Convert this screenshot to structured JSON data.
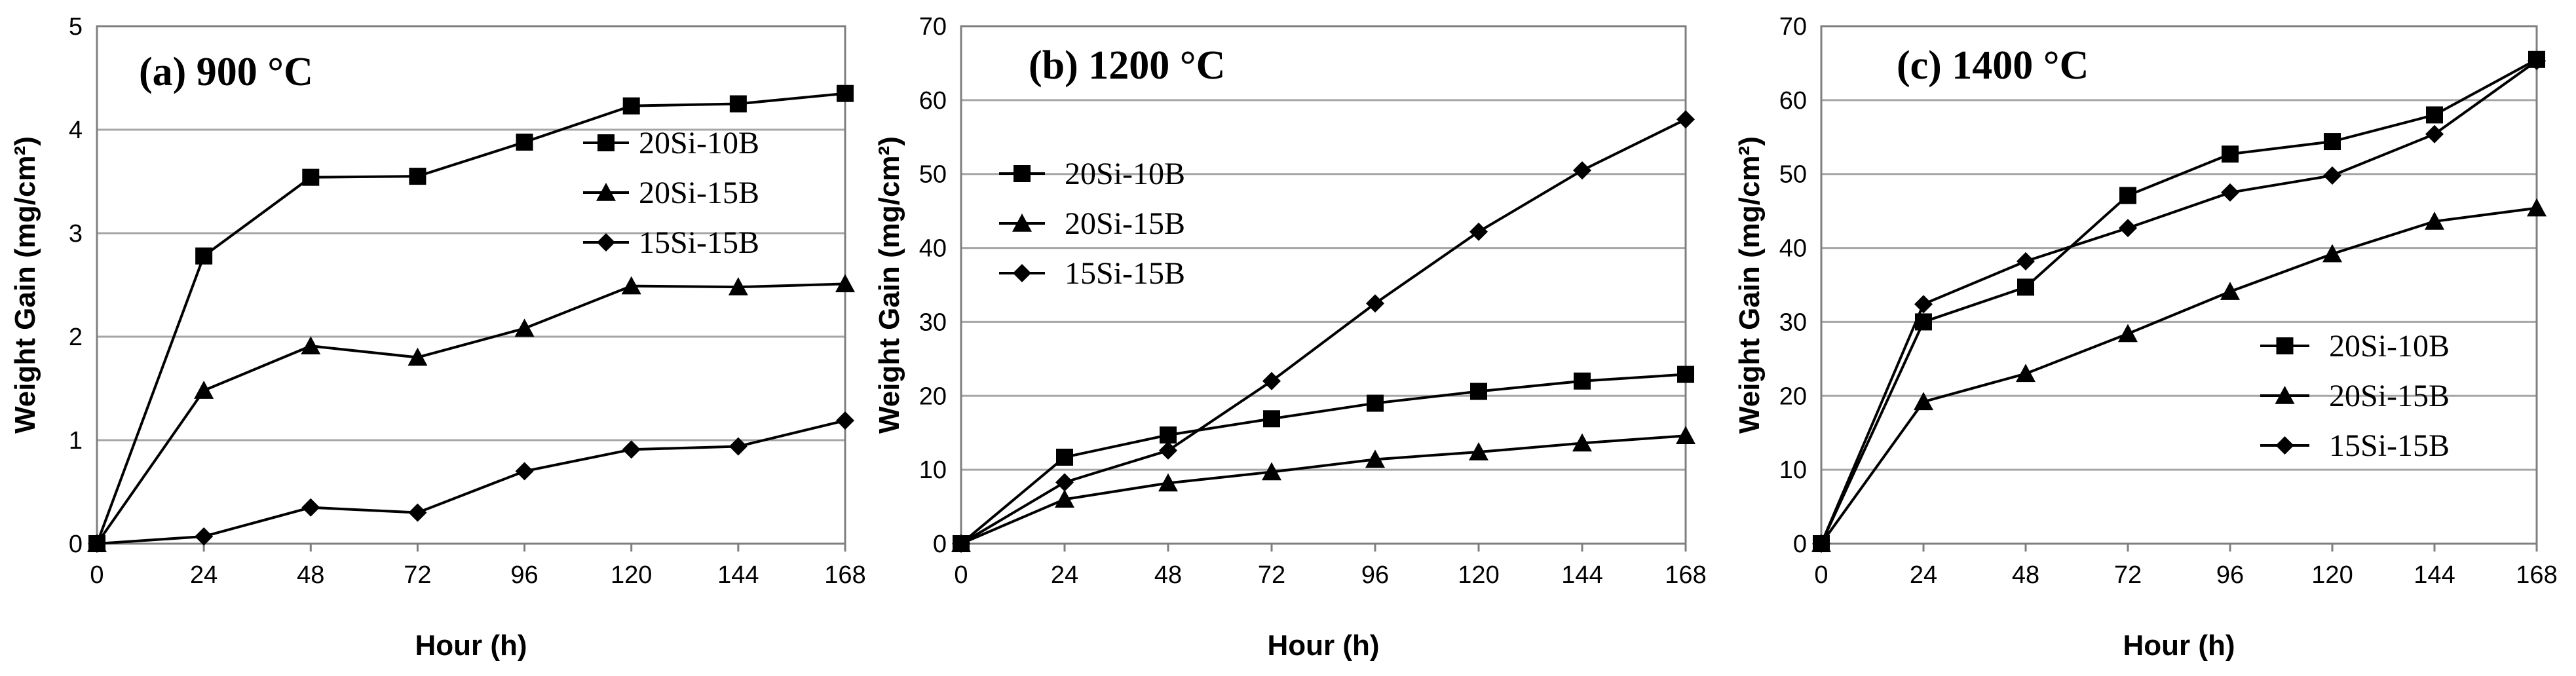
{
  "chart_data": [
    {
      "type": "line",
      "title": "(a) 900 °C",
      "xlabel": "Hour (h)",
      "ylabel": "Weight Gain (mg/cm²)",
      "x": [
        0,
        24,
        48,
        72,
        96,
        120,
        144,
        168
      ],
      "xticks": [
        "0",
        "24",
        "48",
        "72",
        "96",
        "120",
        "144",
        "168"
      ],
      "ylim": [
        0,
        5
      ],
      "yticks": [
        "0",
        "1",
        "2",
        "3",
        "4",
        "5"
      ],
      "grid": true,
      "legend_position": "right",
      "series": [
        {
          "name": "20Si-10B",
          "marker": "square",
          "values": [
            0,
            2.78,
            3.54,
            3.55,
            3.88,
            4.23,
            4.25,
            4.35
          ]
        },
        {
          "name": "20Si-15B",
          "marker": "triangle",
          "values": [
            0,
            1.48,
            1.91,
            1.8,
            2.08,
            2.49,
            2.48,
            2.51
          ]
        },
        {
          "name": "15Si-15B",
          "marker": "diamond",
          "values": [
            0,
            0.07,
            0.35,
            0.3,
            0.7,
            0.91,
            0.94,
            1.19
          ]
        }
      ]
    },
    {
      "type": "line",
      "title": "(b) 1200 °C",
      "xlabel": "Hour (h)",
      "ylabel": "Weight Gain (mg/cm²)",
      "x": [
        0,
        24,
        48,
        72,
        96,
        120,
        144,
        168
      ],
      "xticks": [
        "0",
        "24",
        "48",
        "72",
        "96",
        "120",
        "144",
        "168"
      ],
      "ylim": [
        0,
        70
      ],
      "yticks": [
        "0",
        "10",
        "20",
        "30",
        "40",
        "50",
        "60",
        "70"
      ],
      "grid": true,
      "legend_position": "left",
      "series": [
        {
          "name": "20Si-10B",
          "marker": "square",
          "values": [
            0,
            11.7,
            14.7,
            16.9,
            19.0,
            20.6,
            22.0,
            22.9
          ]
        },
        {
          "name": "20Si-15B",
          "marker": "triangle",
          "values": [
            0,
            6.0,
            8.2,
            9.7,
            11.4,
            12.4,
            13.6,
            14.6
          ]
        },
        {
          "name": "15Si-15B",
          "marker": "diamond",
          "values": [
            0,
            8.3,
            12.6,
            22.0,
            32.5,
            42.2,
            50.5,
            57.4
          ]
        }
      ]
    },
    {
      "type": "line",
      "title": "(c) 1400 °C",
      "xlabel": "Hour (h)",
      "ylabel": "Weight Gain (mg/cm²)",
      "x": [
        0,
        24,
        48,
        72,
        96,
        120,
        144,
        168
      ],
      "xticks": [
        "0",
        "24",
        "48",
        "72",
        "96",
        "120",
        "144",
        "168"
      ],
      "ylim": [
        0,
        70
      ],
      "yticks": [
        "0",
        "10",
        "20",
        "30",
        "40",
        "50",
        "60",
        "70"
      ],
      "grid": true,
      "legend_position": "bottom-right",
      "series": [
        {
          "name": "20Si-10B",
          "marker": "square",
          "values": [
            0,
            30.0,
            34.7,
            47.1,
            52.7,
            54.4,
            58.0,
            65.5
          ]
        },
        {
          "name": "20Si-15B",
          "marker": "triangle",
          "values": [
            0,
            19.2,
            23.0,
            28.4,
            34.1,
            39.2,
            43.6,
            45.4
          ]
        },
        {
          "name": "15Si-15B",
          "marker": "diamond",
          "values": [
            0,
            32.4,
            38.2,
            42.7,
            47.5,
            49.8,
            55.4,
            65.3
          ]
        }
      ]
    }
  ]
}
